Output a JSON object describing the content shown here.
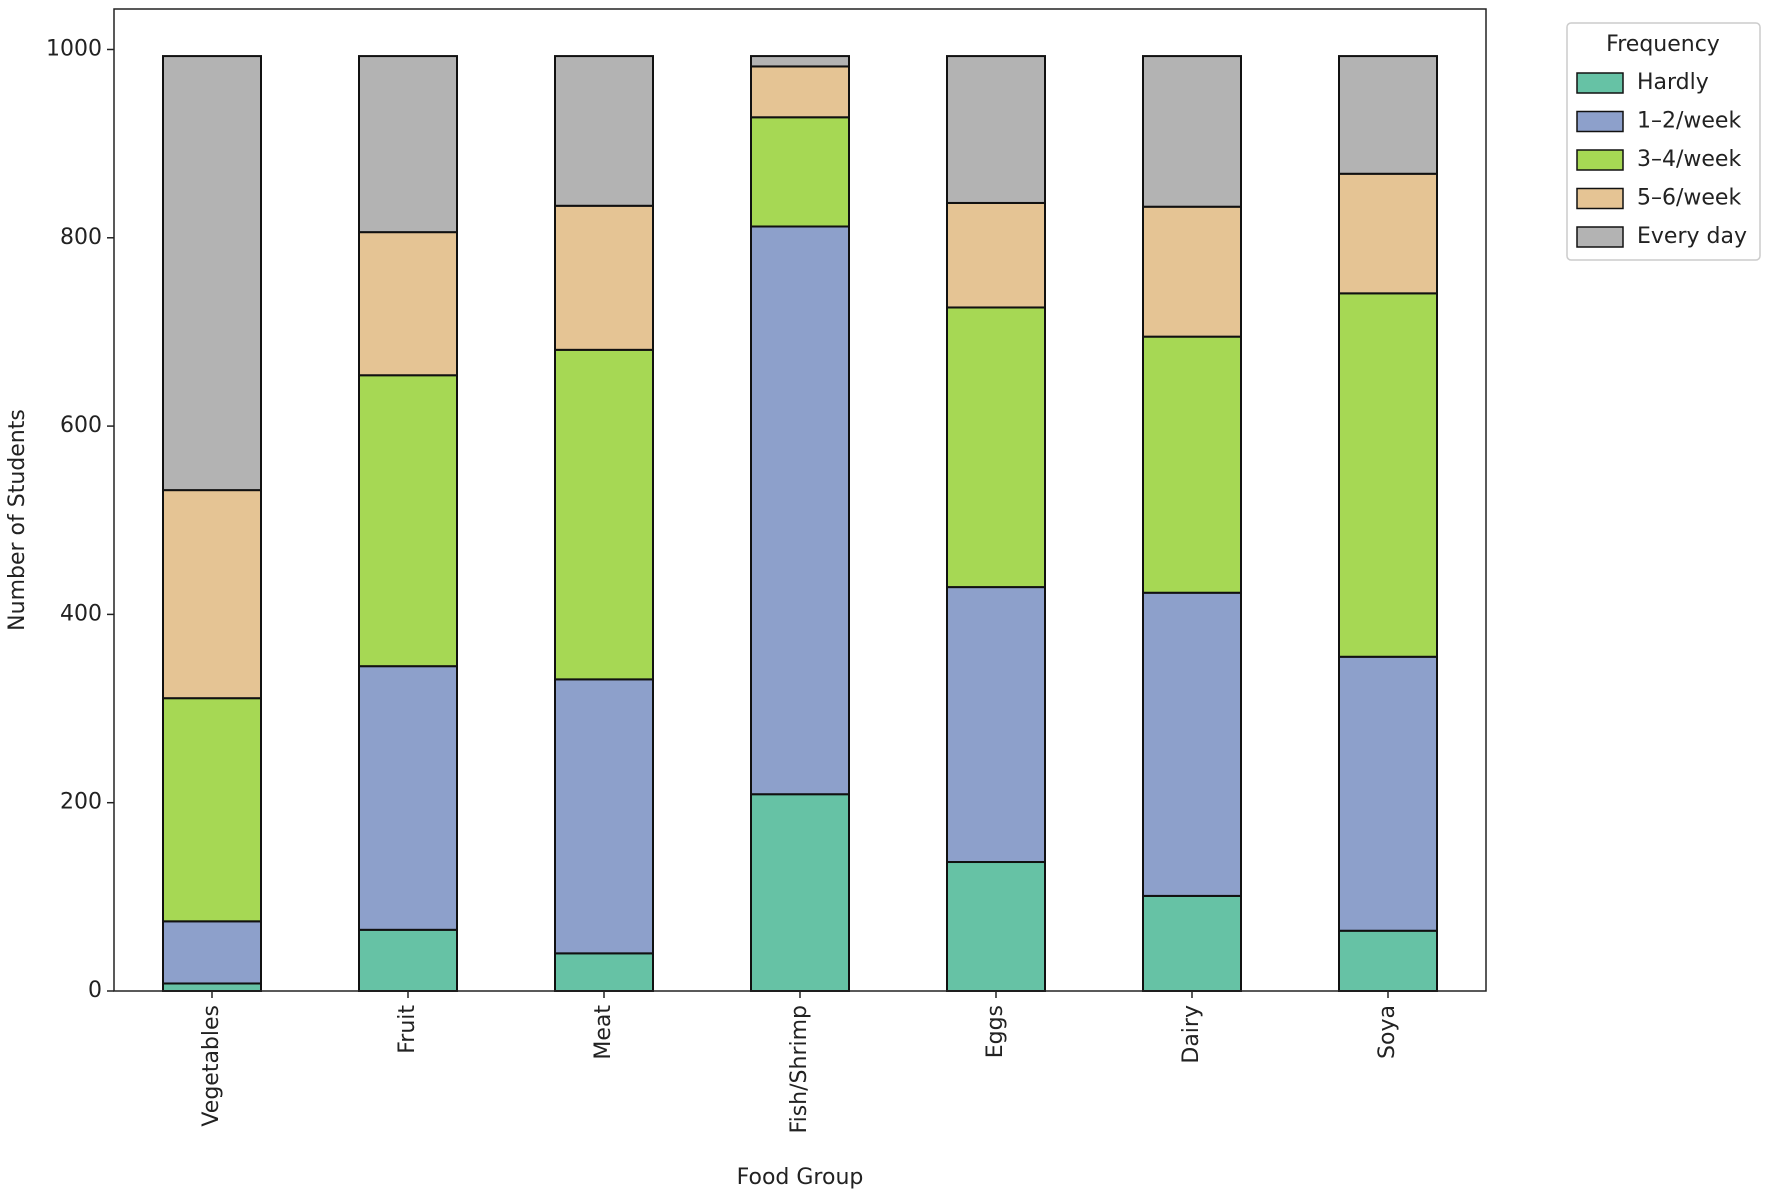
{
  "chart_data": {
    "type": "stacked_bar",
    "x_label": "Food Group",
    "y_label": "Number of Students",
    "categories": [
      "Vegetables",
      "Fruit",
      "Meat",
      "Fish/Shrimp",
      "Eggs",
      "Dairy",
      "Soya"
    ],
    "series": [
      {
        "name": "Hardly",
        "color": "#66c2a5",
        "values": [
          8,
          65,
          40,
          209,
          137,
          101,
          64
        ]
      },
      {
        "name": "1–2/week",
        "color": "#8da0cb",
        "values": [
          66,
          280,
          291,
          603,
          292,
          322,
          291
        ]
      },
      {
        "name": "3–4/week",
        "color": "#a6d854",
        "values": [
          237,
          309,
          350,
          116,
          297,
          272,
          386
        ]
      },
      {
        "name": "5–6/week",
        "color": "#e5c494",
        "values": [
          221,
          152,
          153,
          54,
          111,
          138,
          127
        ]
      },
      {
        "name": "Every day",
        "color": "#b3b3b3",
        "values": [
          461,
          187,
          159,
          11,
          156,
          160,
          125
        ]
      }
    ],
    "ylim": [
      0,
      1043
    ],
    "yticks": [
      0,
      200,
      400,
      600,
      800,
      1000
    ],
    "legend_title": "Frequency",
    "legend": "outside upper right"
  }
}
